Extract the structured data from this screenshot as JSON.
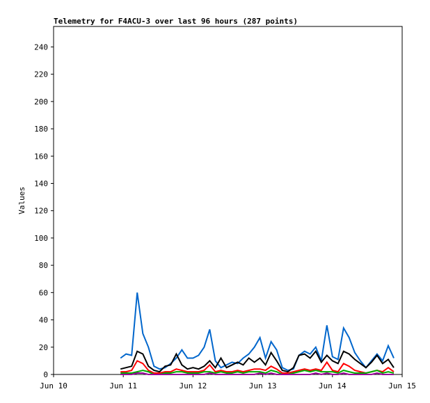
{
  "chart_data": {
    "type": "line",
    "title": "Telemetry for F4ACU-3 over last 96 hours (287 points)",
    "y_label": "Values",
    "xlim": [
      0,
      5
    ],
    "ylim": [
      0,
      255
    ],
    "xticks": [
      {
        "value": 0,
        "label": "Jun 10"
      },
      {
        "value": 1,
        "label": "Jun 11"
      },
      {
        "value": 2,
        "label": "Jun 12"
      },
      {
        "value": 3,
        "label": "Jun 13"
      },
      {
        "value": 4,
        "label": "Jun 14"
      },
      {
        "value": 5,
        "label": "Jun 15"
      }
    ],
    "yticks": [
      0,
      20,
      40,
      60,
      80,
      100,
      120,
      140,
      160,
      180,
      200,
      220,
      240
    ],
    "x": [
      0.96,
      1.04,
      1.12,
      1.2,
      1.28,
      1.36,
      1.44,
      1.52,
      1.6,
      1.68,
      1.76,
      1.84,
      1.92,
      2.0,
      2.08,
      2.16,
      2.24,
      2.32,
      2.4,
      2.48,
      2.56,
      2.64,
      2.72,
      2.8,
      2.88,
      2.96,
      3.04,
      3.12,
      3.2,
      3.28,
      3.36,
      3.44,
      3.52,
      3.6,
      3.68,
      3.76,
      3.84,
      3.92,
      4.0,
      4.08,
      4.16,
      4.24,
      4.32,
      4.4,
      4.48,
      4.56,
      4.64,
      4.72,
      4.8,
      4.88
    ],
    "series": [
      {
        "color": "#0066cc",
        "values": [
          12,
          15,
          14,
          60,
          30,
          20,
          6,
          4,
          5,
          8,
          12,
          18,
          12,
          12,
          14,
          20,
          33,
          10,
          5,
          7,
          9,
          8,
          12,
          15,
          20,
          27,
          12,
          24,
          18,
          5,
          3,
          4,
          14,
          17,
          15,
          20,
          10,
          36,
          13,
          11,
          34,
          27,
          16,
          10,
          5,
          10,
          15,
          10,
          21,
          12
        ]
      },
      {
        "color": "#000000",
        "values": [
          4,
          5,
          6,
          17,
          15,
          6,
          3,
          2,
          6,
          7,
          15,
          7,
          4,
          5,
          4,
          6,
          10,
          5,
          12,
          5,
          7,
          9,
          7,
          12,
          9,
          12,
          7,
          16,
          10,
          3,
          2,
          5,
          14,
          15,
          12,
          17,
          9,
          14,
          10,
          8,
          17,
          15,
          11,
          8,
          5,
          9,
          14,
          8,
          11,
          5
        ]
      },
      {
        "color": "#ff0000",
        "values": [
          2,
          2,
          3,
          10,
          8,
          3,
          1,
          1,
          2,
          2,
          4,
          3,
          2,
          2,
          2,
          3,
          7,
          2,
          3,
          2,
          2,
          3,
          2,
          3,
          4,
          4,
          3,
          6,
          4,
          1,
          1,
          2,
          3,
          4,
          3,
          4,
          3,
          9,
          3,
          2,
          8,
          6,
          3,
          2,
          1,
          2,
          3,
          2,
          5,
          2
        ]
      },
      {
        "color": "#00aa00",
        "values": [
          1,
          1,
          1,
          2,
          3,
          2,
          0,
          0,
          1,
          1,
          2,
          2,
          1,
          1,
          1,
          2,
          2,
          1,
          2,
          1,
          1,
          2,
          1,
          2,
          2,
          2,
          1,
          3,
          2,
          0,
          0,
          1,
          2,
          3,
          2,
          3,
          2,
          2,
          2,
          1,
          3,
          2,
          1,
          1,
          1,
          2,
          3,
          1,
          2,
          1
        ]
      },
      {
        "color": "#990099",
        "values": [
          0,
          0,
          0,
          1,
          1,
          0,
          0,
          0,
          0,
          0,
          0,
          0,
          0,
          0,
          0,
          0,
          1,
          0,
          0,
          0,
          0,
          0,
          0,
          0,
          0,
          1,
          0,
          1,
          0,
          0,
          0,
          0,
          0,
          0,
          0,
          1,
          0,
          1,
          0,
          0,
          1,
          0,
          0,
          0,
          0,
          0,
          1,
          0,
          0,
          0
        ]
      }
    ]
  }
}
